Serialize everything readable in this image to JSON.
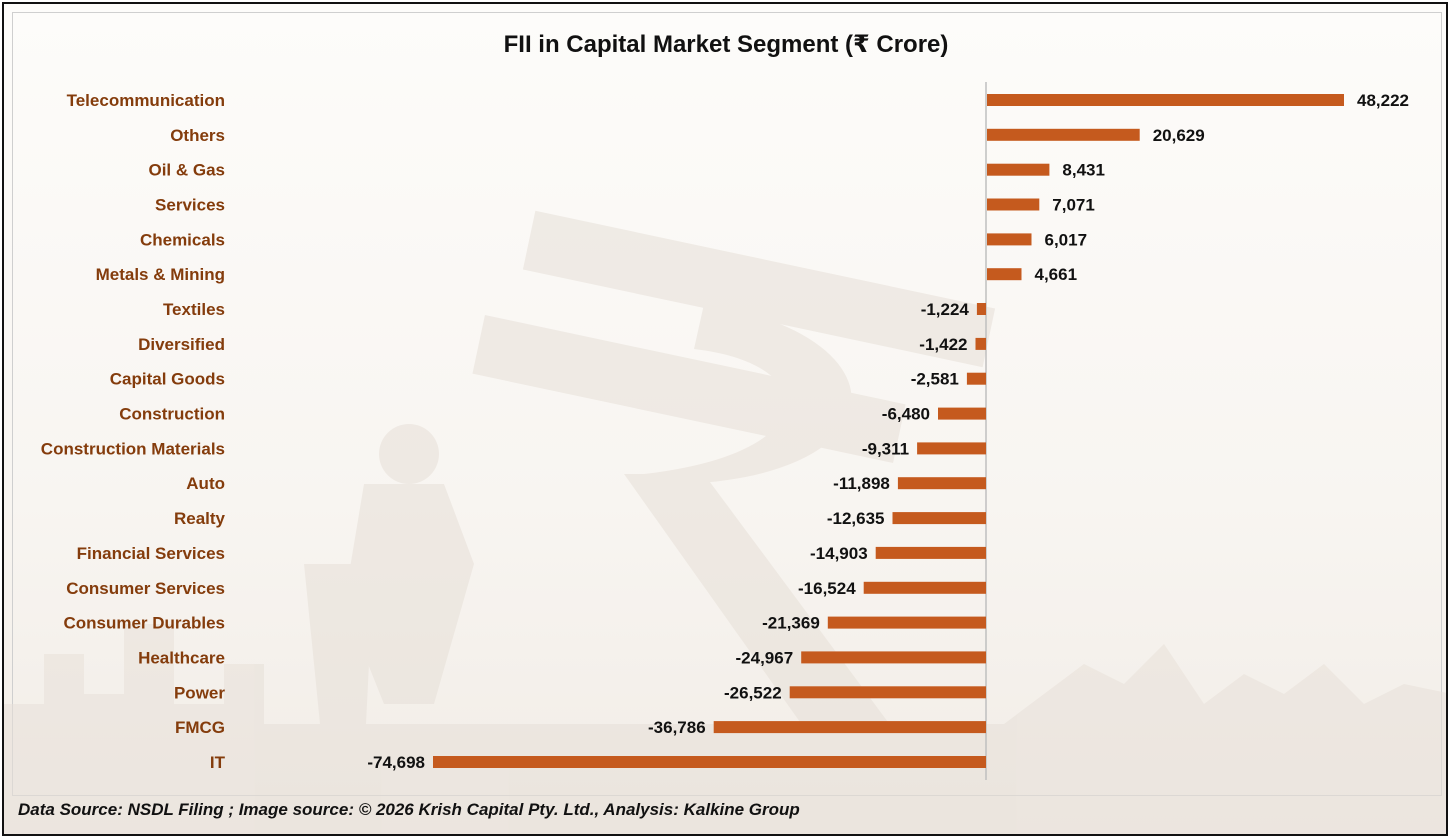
{
  "chart_data": {
    "type": "bar",
    "orientation": "horizontal",
    "title": "FII in Capital Market Segment  (₹ Crore)",
    "categories": [
      "Telecommunication",
      "Others",
      "Oil & Gas",
      "Services",
      "Chemicals",
      "Metals & Mining",
      "Textiles",
      "Diversified",
      "Capital Goods",
      "Construction",
      "Construction Materials",
      "Auto",
      "Realty",
      "Financial Services",
      "Consumer Services",
      "Consumer Durables",
      "Healthcare",
      "Power",
      "FMCG",
      "IT"
    ],
    "values": [
      48222,
      20629,
      8431,
      7071,
      6017,
      4661,
      -1224,
      -1422,
      -2581,
      -6480,
      -9311,
      -11898,
      -12635,
      -14903,
      -16524,
      -21369,
      -24967,
      -26522,
      -36786,
      -74698
    ],
    "value_labels": [
      "48,222",
      "20,629",
      "8,431",
      "7,071",
      "6,017",
      "4,661",
      "-1,224",
      "-1,422",
      "-2,581",
      "-6,480",
      "-9,311",
      "-11,898",
      "-12,635",
      "-14,903",
      "-16,524",
      "-21,369",
      "-24,967",
      "-26,522",
      "-36,786",
      "-74,698"
    ],
    "bar_color": "#C55A1E",
    "label_color": "#843C0C",
    "xlim": [
      -74698,
      48222
    ],
    "grid": false,
    "legend": "none"
  },
  "footer": {
    "source": "Data Source: NSDL Filing ; Image source: © 2026 Krish Capital Pty. Ltd., Analysis: Kalkine Group"
  }
}
